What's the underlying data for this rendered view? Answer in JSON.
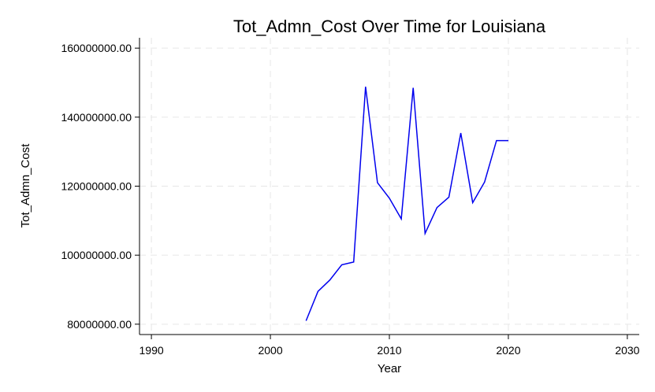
{
  "chart_data": {
    "type": "line",
    "title": "Tot_Admn_Cost Over Time for Louisiana",
    "xlabel": "Year",
    "ylabel": "Tot_Admn_Cost",
    "xlim": [
      1989,
      2031
    ],
    "ylim": [
      77000000,
      163000000
    ],
    "x_ticks": [
      1990,
      2000,
      2010,
      2020,
      2030
    ],
    "x_tick_labels": [
      "1990",
      "2000",
      "2010",
      "2020",
      "2030"
    ],
    "y_ticks": [
      80000000,
      100000000,
      120000000,
      140000000,
      160000000
    ],
    "y_tick_labels": [
      "80000000.00",
      "100000000.00",
      "120000000.00",
      "140000000.00",
      "160000000.00"
    ],
    "grid": true,
    "line_color": "#0000ee",
    "series": [
      {
        "x": [
          2003,
          2004,
          2005,
          2006,
          2007,
          2008,
          2009,
          2010,
          2011,
          2012,
          2013,
          2014,
          2015,
          2016,
          2017,
          2018,
          2019,
          2020
        ],
        "values": [
          81000000,
          89500000,
          92800000,
          97200000,
          98000000,
          148800000,
          121000000,
          116500000,
          110500000,
          148500000,
          106300000,
          113800000,
          116800000,
          135400000,
          115200000,
          121200000,
          133200000,
          133200000
        ]
      }
    ]
  }
}
